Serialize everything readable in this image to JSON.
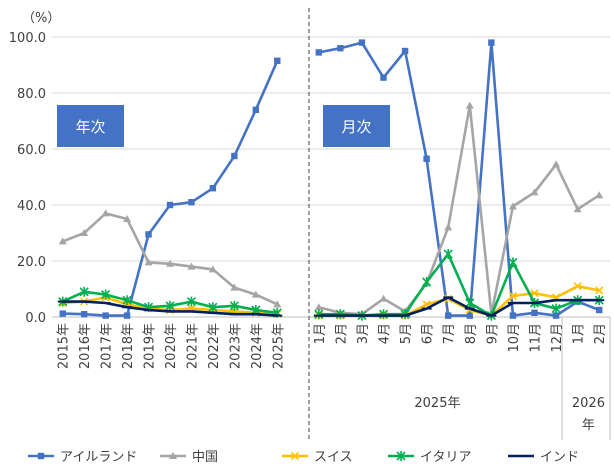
{
  "chart_data": {
    "type": "line",
    "y_unit": "（%）",
    "y_ticks": [
      "0.0",
      "20.0",
      "40.0",
      "60.0",
      "80.0",
      "100.0"
    ],
    "ylim": [
      0,
      100
    ],
    "grid": true,
    "legend_position": "bottom",
    "panels": [
      {
        "label": "年次",
        "categories": [
          "2015年",
          "2016年",
          "2017年",
          "2018年",
          "2019年",
          "2020年",
          "2021年",
          "2022年",
          "2023年",
          "2024年",
          "2025年"
        ],
        "series": [
          {
            "name": "アイルランド",
            "color": "#4472C4",
            "marker": "square",
            "values": [
              1.2,
              1.0,
              0.5,
              0.5,
              29.5,
              40.0,
              41.0,
              46.0,
              57.5,
              74.0,
              91.5
            ]
          },
          {
            "name": "中国",
            "color": "#A5A5A5",
            "marker": "triangle",
            "values": [
              27.0,
              30.0,
              37.0,
              35.0,
              19.5,
              19.0,
              18.0,
              17.0,
              10.5,
              8.0,
              4.5
            ]
          },
          {
            "name": "スイス",
            "color": "#FFC000",
            "marker": "x",
            "values": [
              5.0,
              5.5,
              7.0,
              4.5,
              3.0,
              2.5,
              3.0,
              2.5,
              2.0,
              1.5,
              1.0
            ]
          },
          {
            "name": "イタリア",
            "color": "#00B050",
            "marker": "star",
            "values": [
              5.5,
              9.0,
              8.0,
              6.0,
              3.5,
              4.0,
              5.5,
              3.5,
              4.0,
              2.5,
              1.5
            ]
          },
          {
            "name": "インド",
            "color": "#002060",
            "marker": "dash",
            "values": [
              5.5,
              5.5,
              5.0,
              3.5,
              2.5,
              2.0,
              2.0,
              1.5,
              1.0,
              1.0,
              0.5
            ]
          }
        ]
      },
      {
        "label": "月次",
        "categories": [
          "1月",
          "2月",
          "3月",
          "4月",
          "5月",
          "6月",
          "7月",
          "8月",
          "9月",
          "10月",
          "11月",
          "12月",
          "1月",
          "2月"
        ],
        "year_groups": [
          {
            "label": "2025年",
            "span": 12
          },
          {
            "label": "2026年",
            "span": 2
          }
        ],
        "series": [
          {
            "name": "アイルランド",
            "color": "#4472C4",
            "marker": "square",
            "values": [
              94.5,
              96.0,
              98.0,
              85.5,
              95.0,
              56.5,
              0.5,
              0.5,
              98.0,
              0.5,
              1.5,
              0.5,
              5.5,
              2.5
            ]
          },
          {
            "name": "中国",
            "color": "#A5A5A5",
            "marker": "triangle",
            "values": [
              3.5,
              1.5,
              1.0,
              6.5,
              2.0,
              12.0,
              32.0,
              75.5,
              1.0,
              39.5,
              44.5,
              54.5,
              38.5,
              43.5
            ]
          },
          {
            "name": "スイス",
            "color": "#FFC000",
            "marker": "x",
            "values": [
              0.5,
              0.5,
              0.5,
              0.5,
              0.5,
              4.5,
              6.5,
              2.5,
              0.5,
              7.5,
              8.5,
              7.0,
              11.0,
              9.5
            ]
          },
          {
            "name": "イタリア",
            "color": "#00B050",
            "marker": "star",
            "values": [
              1.0,
              1.0,
              0.5,
              1.0,
              1.0,
              12.5,
              22.5,
              5.0,
              0.5,
              19.5,
              5.0,
              3.0,
              6.0,
              6.0
            ]
          },
          {
            "name": "インド",
            "color": "#002060",
            "marker": "dash",
            "values": [
              0.5,
              0.5,
              0.5,
              0.5,
              0.5,
              3.0,
              7.0,
              3.0,
              0.5,
              5.0,
              5.0,
              6.0,
              6.0,
              6.0
            ]
          }
        ]
      }
    ]
  }
}
